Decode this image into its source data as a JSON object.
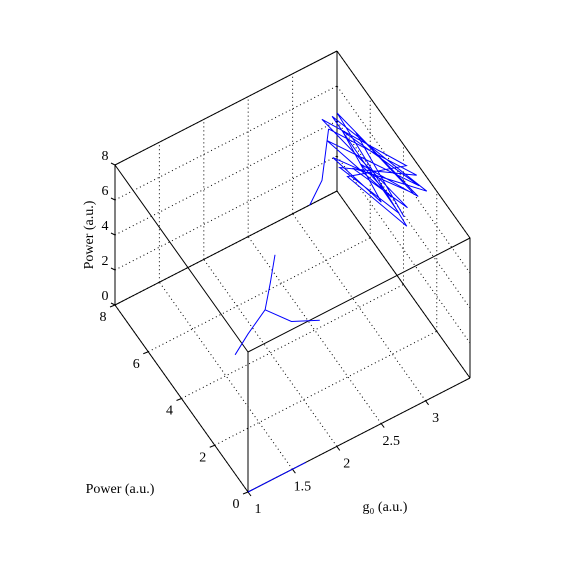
{
  "chart_data": {
    "type": "line3d",
    "xlabel": "g₀ (a.u.)",
    "ylabel": "Power (a.u.)",
    "zlabel": "Power (a.u.)",
    "xlim": [
      1,
      3.5
    ],
    "ylim": [
      0,
      8
    ],
    "zlim": [
      0,
      8
    ],
    "xticks": [
      1,
      1.5,
      2,
      2.5,
      3
    ],
    "yticks": [
      0,
      2,
      4,
      6,
      8
    ],
    "zticks": [
      0,
      2,
      4,
      6,
      8
    ],
    "grid": true,
    "series": [
      {
        "color": "#0000ff",
        "x": [
          1.0,
          1.3,
          1.65
        ],
        "y": [
          0,
          0,
          0
        ],
        "z": [
          0,
          0,
          0
        ]
      },
      {
        "color": "#0000ff",
        "x": [
          1.4,
          1.6,
          1.85,
          2.0,
          2.15
        ],
        "y": [
          2.91,
          3.2,
          3.51,
          4.0,
          4.52
        ],
        "z": [
          2.91,
          3.2,
          3.51,
          4.0,
          4.52
        ]
      },
      {
        "color": "#0000ff",
        "x": [
          1.85,
          2.05,
          2.32
        ],
        "y": [
          3.51,
          3.0,
          2.73
        ],
        "z": [
          3.51,
          3.0,
          2.73
        ]
      },
      {
        "color": "#0000ff",
        "x": [
          2.66,
          2.87,
          3.2
        ],
        "y": [
          5.16,
          5.54,
          6.9
        ],
        "z": [
          5.16,
          5.54,
          5.8
        ]
      },
      {
        "color": "#0000ff",
        "x": [
          3.2,
          3.48,
          3.25,
          3.45,
          3.22,
          3.5,
          3.3,
          3.47,
          3.18,
          3.42,
          3.28,
          3.5,
          3.24,
          3.46,
          3.32,
          3.44,
          3.2,
          3.49,
          3.26,
          3.4,
          3.21,
          3.48,
          3.3,
          3.45
        ],
        "y": [
          6.9,
          3.1,
          6.5,
          4.0,
          6.8,
          2.6,
          6.0,
          3.6,
          7.2,
          3.4,
          6.2,
          3.8,
          6.6,
          2.9,
          5.6,
          4.4,
          7.0,
          3.0,
          6.4,
          4.8,
          6.7,
          3.3,
          5.8,
          3.7
        ],
        "z": [
          5.8,
          7.5,
          4.0,
          4.2,
          6.6,
          7.2,
          4.5,
          5.0,
          6.0,
          7.8,
          3.8,
          3.6,
          7.0,
          6.6,
          5.2,
          4.6,
          5.0,
          7.0,
          6.2,
          3.9,
          4.4,
          6.2,
          6.8,
          4.4
        ]
      }
    ]
  }
}
